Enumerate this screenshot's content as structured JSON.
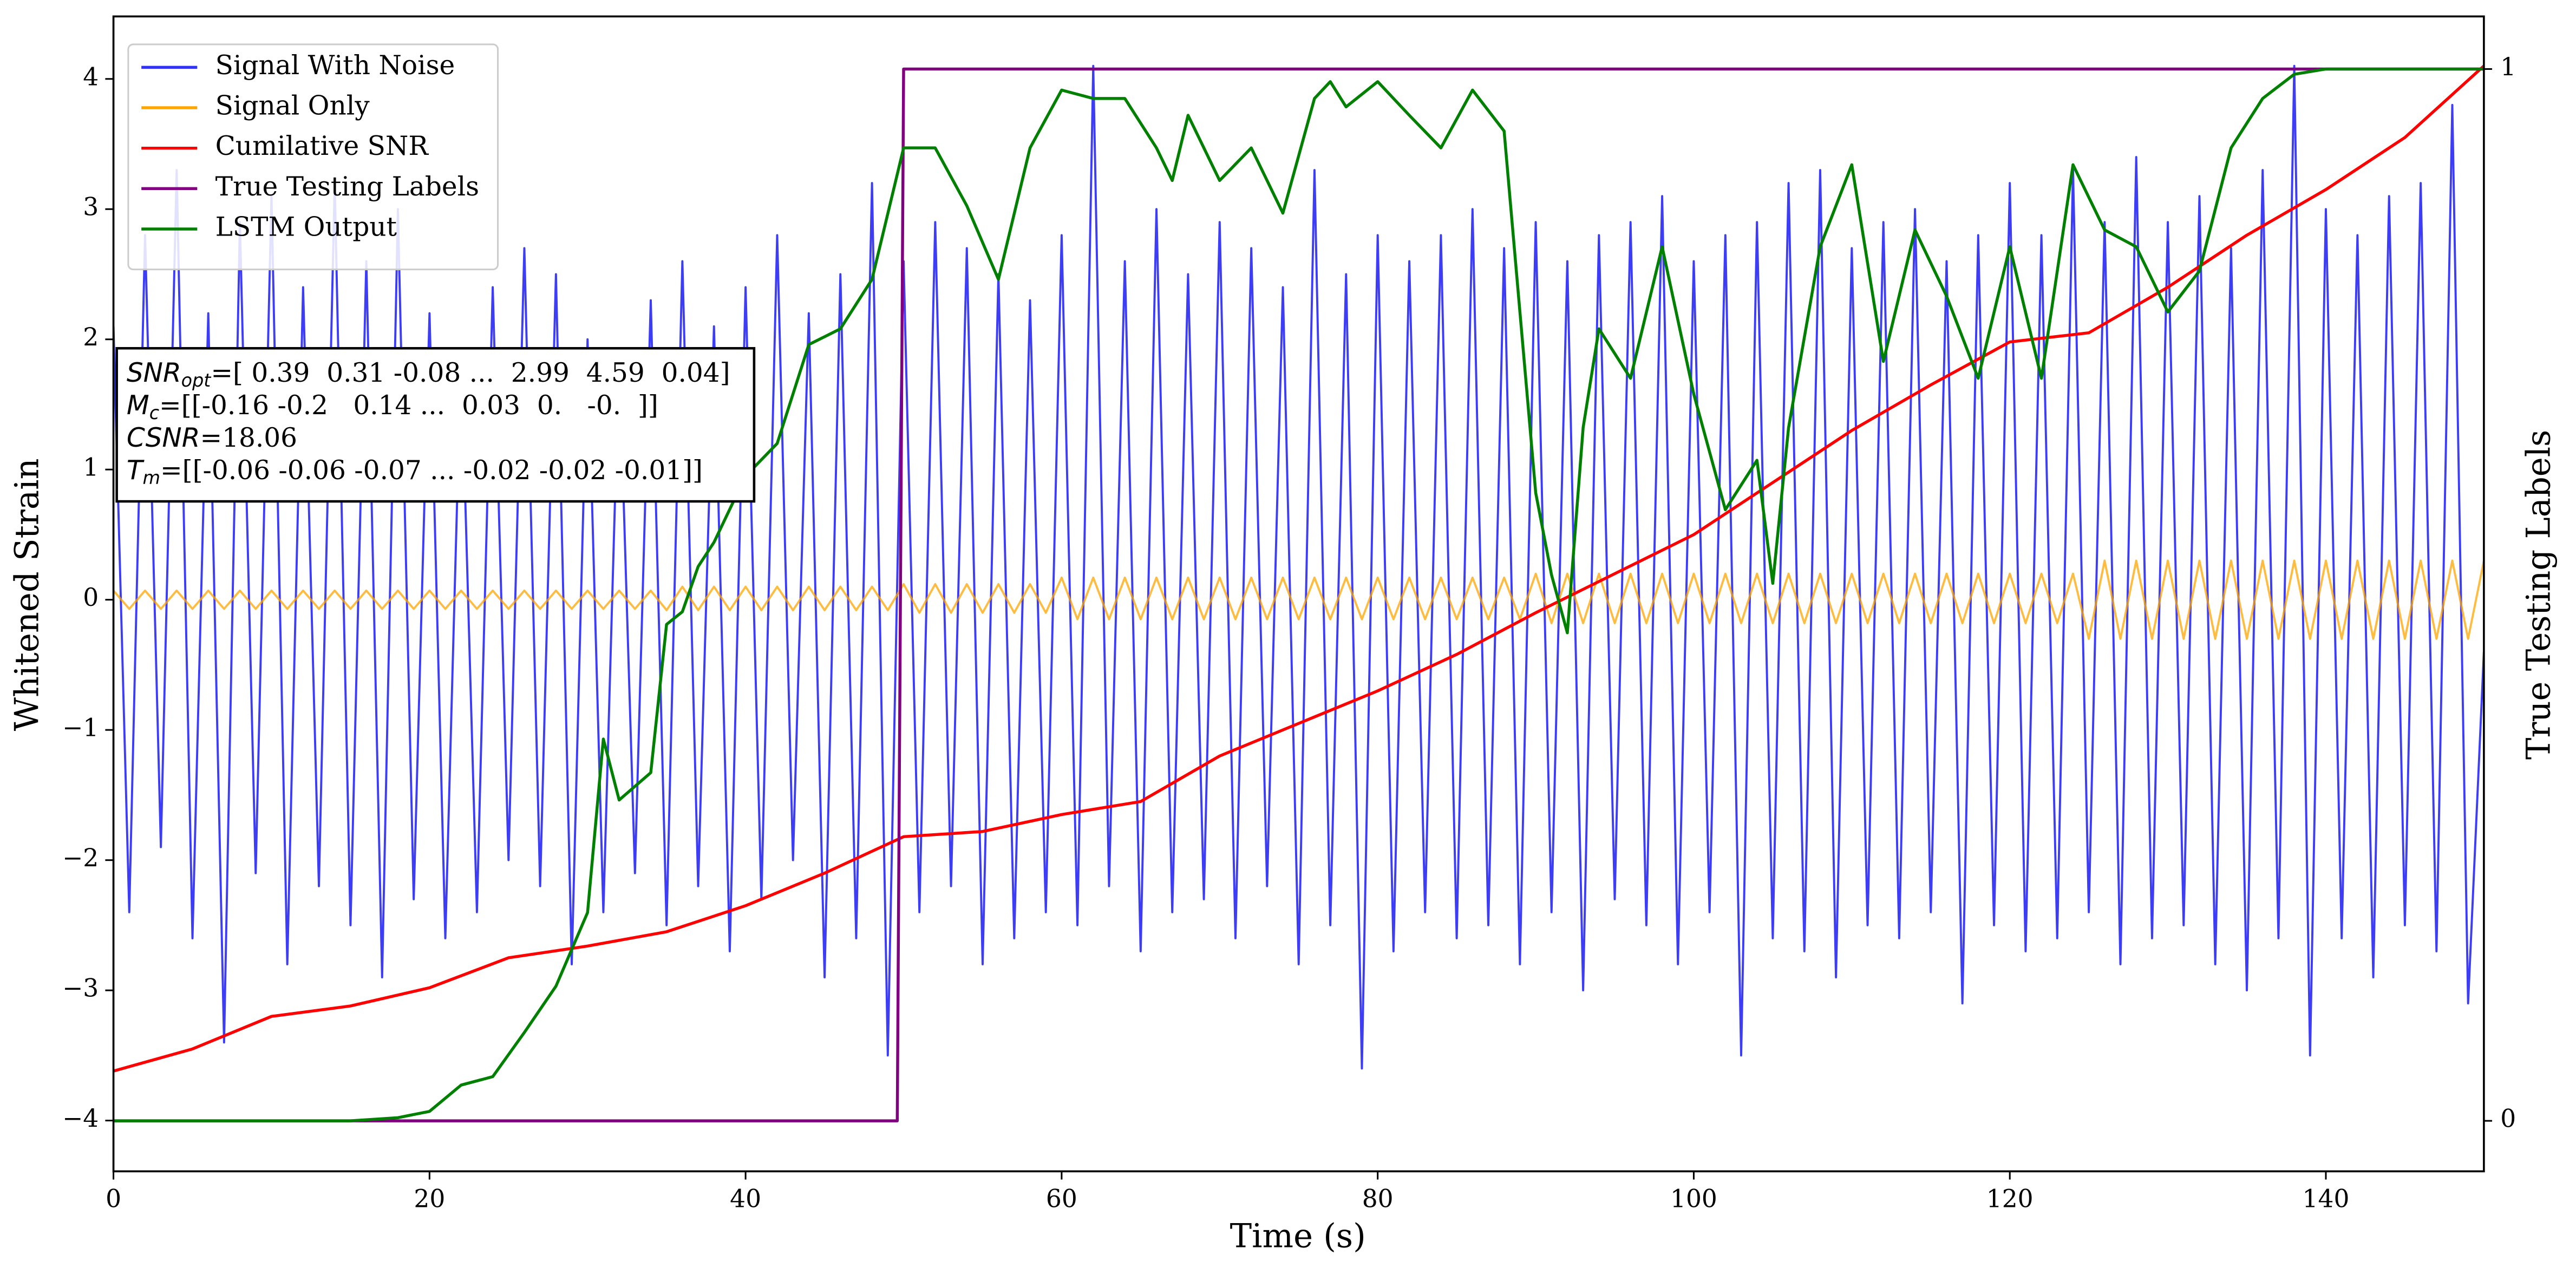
{
  "chart_data": {
    "type": "line",
    "x_label": "Time (s)",
    "y_label": "Whitened Strain",
    "y2_label": "True Testing Labels",
    "xlim": [
      0,
      150
    ],
    "xticks": [
      0,
      20,
      40,
      60,
      80,
      100,
      120,
      140
    ],
    "ylim": [
      -4.39,
      4.48
    ],
    "yticks": [
      {
        "value": -4,
        "label": "−4"
      },
      {
        "value": -3,
        "label": "−3"
      },
      {
        "value": -2,
        "label": "−2"
      },
      {
        "value": -1,
        "label": "−1"
      },
      0,
      1,
      2,
      3,
      4
    ],
    "y2lim": [
      -0.048,
      1.05
    ],
    "y2ticks": [
      0,
      1
    ],
    "legend": "upper left",
    "annotation": [
      {
        "main": "SNR",
        "sub": "opt",
        "rest": "=[ 0.39  0.31 -0.08 ...  2.99  4.59  0.04]"
      },
      {
        "main": "M",
        "sub": "c",
        "rest": "=[[-0.16 -0.2   0.14 ...  0.03  0.   -0.  ]]"
      },
      {
        "main": "CSNR",
        "rest": "=18.06"
      },
      {
        "main": "T",
        "sub": "m",
        "rest": "=[[-0.06 -0.06 -0.07 ... -0.02 -0.02 -0.01]]"
      }
    ],
    "x": [
      0,
      1,
      2,
      3,
      4,
      5,
      6,
      7,
      8,
      9,
      10,
      11,
      12,
      13,
      14,
      15,
      16,
      17,
      18,
      19,
      20,
      21,
      22,
      23,
      24,
      25,
      26,
      27,
      28,
      29,
      30,
      31,
      32,
      33,
      34,
      35,
      36,
      37,
      38,
      39,
      40,
      41,
      42,
      43,
      44,
      45,
      46,
      47,
      48,
      49,
      50,
      51,
      52,
      53,
      54,
      55,
      56,
      57,
      58,
      59,
      60,
      61,
      62,
      63,
      64,
      65,
      66,
      67,
      68,
      69,
      70,
      71,
      72,
      73,
      74,
      75,
      76,
      77,
      78,
      79,
      80,
      81,
      82,
      83,
      84,
      85,
      86,
      87,
      88,
      89,
      90,
      91,
      92,
      93,
      94,
      95,
      96,
      97,
      98,
      99,
      100,
      101,
      102,
      103,
      104,
      105,
      106,
      107,
      108,
      109,
      110,
      111,
      112,
      113,
      114,
      115,
      116,
      117,
      118,
      119,
      120,
      121,
      122,
      123,
      124,
      125,
      126,
      127,
      128,
      129,
      130,
      131,
      132,
      133,
      134,
      135,
      136,
      137,
      138,
      139,
      140,
      141,
      142,
      143,
      144,
      145,
      146,
      147,
      148,
      149,
      150
    ],
    "series": [
      {
        "name": "Signal With Noise",
        "color": "#3333f5",
        "values": [
          2.1,
          -2.4,
          2.8,
          -1.9,
          3.3,
          -2.6,
          2.2,
          -3.4,
          2.9,
          -2.1,
          3.1,
          -2.8,
          2.4,
          -2.2,
          3.2,
          -2.5,
          2.6,
          -2.9,
          3.0,
          -2.3,
          2.2,
          -2.6,
          1.9,
          -2.4,
          2.4,
          -2.0,
          2.7,
          -2.2,
          2.5,
          -2.8,
          2.0,
          -2.4,
          1.9,
          -2.1,
          2.3,
          -2.5,
          2.6,
          -2.2,
          2.1,
          -2.7,
          2.4,
          -2.3,
          2.8,
          -2.0,
          2.2,
          -2.9,
          2.5,
          -2.6,
          3.2,
          -3.5,
          2.6,
          -2.4,
          2.9,
          -2.2,
          2.7,
          -2.8,
          2.5,
          -2.6,
          2.3,
          -2.4,
          2.8,
          -2.5,
          4.1,
          -2.2,
          2.6,
          -2.7,
          3.0,
          -2.4,
          2.5,
          -2.3,
          2.9,
          -2.6,
          2.7,
          -2.2,
          2.4,
          -2.8,
          3.3,
          -2.5,
          2.5,
          -3.6,
          2.8,
          -2.7,
          2.6,
          -2.4,
          2.8,
          -2.6,
          3.0,
          -2.5,
          2.7,
          -2.8,
          2.9,
          -2.4,
          2.6,
          -3.0,
          2.8,
          -2.3,
          2.9,
          -2.5,
          3.1,
          -2.8,
          2.6,
          -2.4,
          2.8,
          -3.5,
          2.9,
          -2.6,
          3.2,
          -2.7,
          3.3,
          -2.9,
          2.7,
          -2.5,
          2.9,
          -2.6,
          3.0,
          -2.4,
          2.6,
          -3.1,
          2.8,
          -2.5,
          3.2,
          -2.7,
          2.8,
          -2.6,
          3.3,
          -2.4,
          2.9,
          -2.8,
          3.4,
          -2.6,
          2.9,
          -2.5,
          3.1,
          -2.8,
          2.7,
          -3.0,
          3.3,
          -2.6,
          4.1,
          -3.5,
          3.0,
          -2.6,
          2.8,
          -2.9,
          3.1,
          -2.5,
          3.2,
          -2.7,
          3.8,
          -3.1,
          -0.4
        ]
      },
      {
        "name": "Signal Only",
        "color": "#ffa500",
        "values": [
          0.07,
          -0.07,
          0.07,
          -0.07,
          0.07,
          -0.07,
          0.07,
          -0.07,
          0.07,
          -0.07,
          0.07,
          -0.07,
          0.07,
          -0.07,
          0.07,
          -0.07,
          0.07,
          -0.07,
          0.07,
          -0.07,
          0.07,
          -0.07,
          0.07,
          -0.07,
          0.07,
          -0.07,
          0.07,
          -0.07,
          0.07,
          -0.07,
          0.07,
          -0.07,
          0.07,
          -0.07,
          0.07,
          -0.08,
          0.1,
          -0.08,
          0.1,
          -0.08,
          0.1,
          -0.08,
          0.1,
          -0.08,
          0.1,
          -0.08,
          0.1,
          -0.08,
          0.1,
          -0.08,
          0.12,
          -0.1,
          0.12,
          -0.1,
          0.12,
          -0.1,
          0.12,
          -0.1,
          0.12,
          -0.1,
          0.17,
          -0.15,
          0.17,
          -0.15,
          0.17,
          -0.15,
          0.17,
          -0.15,
          0.17,
          -0.15,
          0.17,
          -0.15,
          0.17,
          -0.15,
          0.17,
          -0.15,
          0.17,
          -0.15,
          0.17,
          -0.15,
          0.17,
          -0.15,
          0.17,
          -0.15,
          0.17,
          -0.15,
          0.17,
          -0.15,
          0.17,
          -0.15,
          0.2,
          -0.18,
          0.2,
          -0.18,
          0.2,
          -0.18,
          0.2,
          -0.18,
          0.2,
          -0.18,
          0.2,
          -0.18,
          0.2,
          -0.18,
          0.2,
          -0.18,
          0.2,
          -0.18,
          0.2,
          -0.18,
          0.2,
          -0.18,
          0.2,
          -0.18,
          0.2,
          -0.18,
          0.2,
          -0.18,
          0.2,
          -0.18,
          0.2,
          -0.18,
          0.2,
          -0.18,
          0.2,
          -0.3,
          0.3,
          -0.3,
          0.3,
          -0.3,
          0.3,
          -0.3,
          0.3,
          -0.3,
          0.3,
          -0.3,
          0.3,
          -0.3,
          0.3,
          -0.3,
          0.3,
          -0.3,
          0.3,
          -0.3,
          0.3,
          -0.3,
          0.3,
          -0.3,
          0.3,
          -0.3,
          0.3
        ]
      },
      {
        "name": "Cumilative SNR",
        "color": "#ff0000",
        "x": [
          0,
          5,
          10,
          15,
          20,
          25,
          30,
          35,
          40,
          45,
          50,
          55,
          60,
          65,
          70,
          75,
          80,
          85,
          90,
          95,
          100,
          105,
          110,
          115,
          120,
          125,
          130,
          135,
          140,
          145,
          150
        ],
        "values": [
          -3.62,
          -3.45,
          -3.2,
          -3.12,
          -2.98,
          -2.75,
          -2.66,
          -2.55,
          -2.35,
          -2.1,
          -1.82,
          -1.78,
          -1.65,
          -1.55,
          -1.2,
          -0.95,
          -0.7,
          -0.42,
          -0.1,
          0.2,
          0.5,
          0.9,
          1.3,
          1.65,
          1.98,
          2.05,
          2.4,
          2.8,
          3.15,
          3.55,
          4.1
        ]
      },
      {
        "name": "True Testing Labels",
        "color": "#800080",
        "axis": "y2",
        "x": [
          0,
          49.6,
          50,
          150
        ],
        "values": [
          0,
          0,
          1,
          1
        ]
      },
      {
        "name": "LSTM Output",
        "color": "#008000",
        "axis": "y2",
        "x": [
          0,
          15,
          18,
          20,
          22,
          24,
          26,
          28,
          30,
          31,
          32,
          34,
          35,
          36,
          37,
          38,
          40,
          42,
          44,
          46,
          48,
          50,
          52,
          54,
          56,
          58,
          60,
          62,
          64,
          66,
          67,
          68,
          70,
          72,
          74,
          76,
          77,
          78,
          80,
          82,
          84,
          86,
          88,
          90,
          91,
          92,
          93,
          94,
          96,
          98,
          100,
          102,
          104,
          105,
          106,
          108,
          110,
          112,
          114,
          116,
          118,
          120,
          122,
          124,
          126,
          128,
          130,
          132,
          134,
          136,
          138,
          140,
          150
        ],
        "values": [
          0,
          0,
          0.003,
          0.009,
          0.034,
          0.042,
          0.084,
          0.128,
          0.198,
          0.363,
          0.305,
          0.331,
          0.472,
          0.484,
          0.527,
          0.55,
          0.613,
          0.644,
          0.738,
          0.753,
          0.8,
          0.925,
          0.925,
          0.87,
          0.8,
          0.925,
          0.98,
          0.972,
          0.972,
          0.925,
          0.894,
          0.956,
          0.894,
          0.925,
          0.863,
          0.972,
          0.988,
          0.964,
          0.988,
          0.956,
          0.925,
          0.98,
          0.941,
          0.597,
          0.519,
          0.464,
          0.659,
          0.753,
          0.706,
          0.831,
          0.691,
          0.581,
          0.628,
          0.511,
          0.659,
          0.831,
          0.909,
          0.722,
          0.847,
          0.784,
          0.706,
          0.831,
          0.706,
          0.909,
          0.847,
          0.831,
          0.769,
          0.808,
          0.925,
          0.972,
          0.995,
          1.0,
          1.0
        ]
      }
    ]
  }
}
